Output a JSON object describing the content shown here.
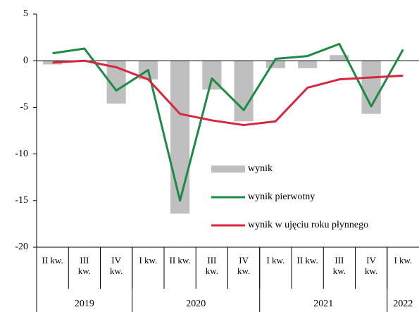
{
  "chart_data": {
    "type": "bar_line",
    "categories": [
      "II kw.",
      "III kw.",
      "IV kw.",
      "I kw.",
      "II kw.",
      "III kw.",
      "IV kw.",
      "I kw.",
      "II kw.",
      "III kw.",
      "IV kw.",
      "I kw."
    ],
    "groups": [
      {
        "name": "2019",
        "span": 3
      },
      {
        "name": "2020",
        "span": 4
      },
      {
        "name": "2021",
        "span": 4
      },
      {
        "name": "2022",
        "span": 1
      }
    ],
    "series": [
      {
        "name": "wynik",
        "type": "bar",
        "color": "#bfbfbf",
        "values": [
          -0.4,
          0,
          -4.6,
          -2.0,
          -16.4,
          -3.1,
          -6.5,
          -0.8,
          -0.8,
          0.6,
          -5.7,
          null
        ]
      },
      {
        "name": "wynik pierwotny",
        "type": "line",
        "color": "#1e8a45",
        "values": [
          0.8,
          1.3,
          -3.2,
          -1.0,
          -15.0,
          -1.9,
          -5.3,
          0.2,
          0.5,
          1.8,
          -4.9,
          1.2
        ]
      },
      {
        "name": "wynik w ujęciu roku płynnego",
        "type": "line",
        "color": "#d7263d",
        "values": [
          -0.2,
          0.0,
          -0.7,
          -2.0,
          -5.7,
          -6.4,
          -6.9,
          -6.5,
          -2.9,
          -2.0,
          -1.8,
          -1.6
        ]
      }
    ],
    "ylim": [
      -20,
      5
    ],
    "yticks": [
      -20,
      -15,
      -10,
      -5,
      0,
      5
    ]
  }
}
